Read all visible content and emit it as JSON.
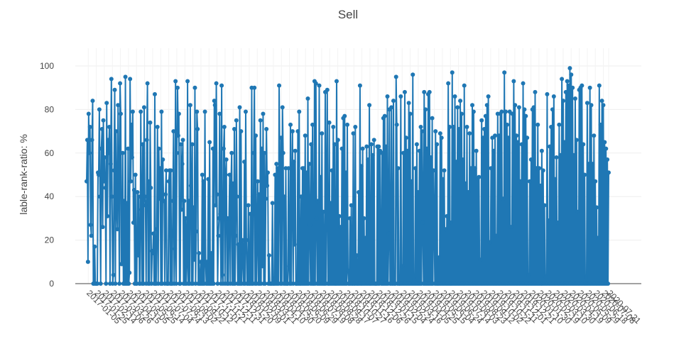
{
  "chart_data": {
    "type": "line",
    "title": "Sell",
    "xlabel": "",
    "ylabel": "lable-rank-ratio: %",
    "ylim": [
      -5,
      105
    ],
    "yticks": [
      0,
      20,
      40,
      60,
      80,
      100
    ],
    "grid": true,
    "legend": "none",
    "x_start": "2017-01-01",
    "x_end": "2020-07-21",
    "line_color": "#1f77b4",
    "x_tick_labels": [
      "2017-01-05",
      "2017-01-25",
      "2017-02-14",
      "2017-03-06",
      "2017-03-26",
      "2017-04-15",
      "2017-05-05",
      "2017-05-25",
      "2017-06-14",
      "2017-07-04",
      "2017-07-24",
      "2017-08-13",
      "2017-09-02",
      "2017-09-22",
      "2017-10-12",
      "2017-11-01",
      "2017-11-21",
      "2017-12-11",
      "2017-12-31",
      "2018-01-20",
      "2018-02-09",
      "2018-03-01",
      "2018-03-21",
      "2018-04-10",
      "2018-04-30",
      "2018-05-20",
      "2018-06-09",
      "2018-06-29",
      "2018-07-19",
      "2018-08-08",
      "2018-08-28",
      "2018-09-17",
      "2018-10-07",
      "2018-10-27",
      "2018-11-16",
      "2018-12-06",
      "2018-12-26",
      "2019-01-15",
      "2019-02-04",
      "2019-02-24",
      "2019-03-16",
      "2019-04-05",
      "2019-04-25",
      "2019-05-15",
      "2019-06-04",
      "2019-06-24",
      "2019-07-14",
      "2019-08-03",
      "2019-08-23",
      "2019-09-12",
      "2019-10-02",
      "2019-10-22",
      "2019-11-11",
      "2019-12-01",
      "2019-12-21",
      "2020-01-10",
      "2020-01-30",
      "2020-02-19",
      "2020-03-10",
      "2020-03-30",
      "2020-04-19",
      "2020-05-09",
      "2020-05-29",
      "2020-06-18",
      "2020-07-08",
      "2020-07-21"
    ],
    "series": [
      {
        "name": "",
        "values": [
          47,
          66,
          10,
          78,
          60,
          72,
          27,
          22,
          66,
          84,
          0,
          0,
          17,
          0,
          0,
          0,
          0,
          51,
          50,
          80,
          40,
          0,
          62,
          71,
          26,
          75,
          47,
          58,
          44,
          0,
          83,
          31,
          66,
          60,
          72,
          0,
          55,
          94,
          40,
          0,
          4,
          52,
          89,
          0,
          70,
          35,
          25,
          82,
          47,
          0,
          92,
          78,
          9,
          9,
          60,
          0,
          38,
          0,
          95,
          0,
          37,
          0,
          62,
          0,
          5,
          94,
          47,
          73,
          58,
          79,
          28,
          43,
          0,
          50,
          0,
          0,
          42,
          13,
          40,
          0,
          0,
          79,
          34,
          0,
          64,
          0,
          81,
          40,
          36,
          0,
          66,
          92,
          0,
          47,
          0,
          74,
          44,
          0,
          15,
          14,
          23,
          0,
          87,
          0,
          0,
          25,
          72,
          0,
          62,
          39,
          53,
          0,
          79,
          0,
          57,
          38,
          38,
          0,
          41,
          52,
          0,
          0,
          0,
          47,
          52,
          0,
          52,
          0,
          0,
          38,
          70,
          0,
          16,
          93,
          0,
          60,
          90,
          68,
          78,
          0,
          0,
          64,
          34,
          55,
          66,
          0,
          38,
          0,
          30,
          0,
          9,
          93,
          0,
          38,
          0,
          82,
          45,
          0,
          64,
          0,
          35,
          11,
          90,
          0,
          24,
          79,
          71,
          0,
          14,
          0,
          0,
          10,
          0,
          50,
          0,
          47,
          0,
          79,
          10,
          0,
          10,
          0,
          48,
          0,
          65,
          0,
          0,
          14,
          0,
          62,
          0,
          84,
          82,
          36,
          92,
          41,
          0,
          22,
          30,
          78,
          32,
          0,
          91,
          4,
          0,
          62,
          72,
          0,
          50,
          57,
          0,
          30,
          0,
          30,
          50,
          0,
          45,
          60,
          0,
          46,
          0,
          71,
          0,
          22,
          75,
          40,
          0,
          18,
          0,
          81,
          0,
          70,
          0,
          20,
          13,
          0,
          56,
          0,
          79,
          20,
          0,
          0,
          36,
          0,
          0,
          32,
          0,
          90,
          0,
          0,
          60,
          90,
          0,
          68,
          0,
          22,
          47,
          0,
          41,
          0,
          75,
          0,
          62,
          8,
          78,
          0,
          60,
          0,
          39,
          71,
          45,
          51,
          0,
          13,
          0,
          0,
          0,
          0,
          37,
          0,
          0,
          0,
          50,
          0,
          55,
          0,
          53,
          0,
          91,
          51,
          0,
          67,
          0,
          81,
          60,
          0,
          40,
          0,
          53,
          0,
          0,
          0,
          53,
          8,
          0,
          73,
          0,
          47,
          70,
          0,
          56,
          18,
          61,
          0,
          0,
          0,
          70,
          0,
          79,
          0,
          0,
          40,
          0,
          53,
          0,
          53,
          0,
          68,
          0,
          51,
          0,
          85,
          0,
          55,
          27,
          0,
          64,
          0,
          73,
          0,
          0,
          93,
          0,
          92,
          30,
          0,
          38,
          0,
          91,
          0,
          49,
          0,
          69,
          0,
          33,
          0,
          0,
          88,
          0,
          40,
          89,
          0,
          0,
          74,
          0,
          37,
          0,
          52,
          0,
          72,
          0,
          64,
          0,
          0,
          93,
          0,
          66,
          0,
          31,
          0,
          26,
          0,
          62,
          0,
          76,
          0,
          77,
          0,
          51,
          0,
          73,
          6,
          0,
          0,
          30,
          0,
          36,
          0,
          0,
          69,
          0,
          0,
          72,
          0,
          13,
          0,
          0,
          42,
          0,
          91,
          0,
          54,
          0,
          62,
          0,
          30,
          0,
          21,
          0,
          63,
          0,
          57,
          0,
          82,
          0,
          0,
          64,
          0,
          59,
          0,
          66,
          0,
          0,
          0,
          0,
          63,
          0,
          63,
          0,
          61,
          1,
          0,
          60,
          0,
          76,
          0,
          77,
          0,
          63,
          0,
          86,
          0,
          23,
          80,
          0,
          0,
          81,
          0,
          0,
          84,
          0,
          0,
          0,
          95,
          73,
          0,
          53,
          0,
          0,
          0,
          86,
          0,
          8,
          0,
          60,
          0,
          88,
          0,
          67,
          0,
          61,
          0,
          83,
          0,
          78,
          0,
          47,
          0,
          96,
          0,
          2,
          0,
          53,
          0,
          64,
          0,
          42,
          0,
          61,
          0,
          72,
          0,
          70,
          28,
          0,
          88,
          0,
          80,
          0,
          62,
          0,
          87,
          0,
          88,
          0,
          58,
          0,
          76,
          0,
          52,
          27,
          0,
          70,
          0,
          64,
          0,
          0,
          12,
          0,
          69,
          0,
          67,
          0,
          48,
          0,
          52,
          0,
          25,
          0,
          31,
          0,
          92,
          0,
          72,
          0,
          28,
          0,
          97,
          0,
          72,
          0,
          86,
          0,
          56,
          0,
          81,
          0,
          71,
          0,
          84,
          0,
          78,
          0,
          57,
          0,
          91,
          0,
          46,
          0,
          72,
          0,
          42,
          0,
          69,
          0,
          53,
          0,
          82,
          0,
          79,
          0,
          53,
          0,
          61,
          0,
          48,
          0,
          49,
          0,
          11,
          0,
          75,
          0,
          67,
          0,
          71,
          0,
          77,
          0,
          82,
          0,
          86,
          0,
          19,
          0,
          53,
          0,
          67,
          0,
          61,
          0,
          68,
          0,
          22,
          0,
          78,
          0,
          68,
          0,
          78,
          0,
          79,
          0,
          39,
          0,
          97,
          0,
          79,
          0,
          73,
          0,
          67,
          0,
          79,
          0,
          26,
          0,
          78,
          0,
          93,
          0,
          82,
          0,
          68,
          0,
          65,
          0,
          81,
          0,
          47,
          0,
          64,
          0,
          92,
          0,
          80,
          0,
          77,
          0,
          67,
          0,
          4,
          0,
          47,
          0,
          57,
          0,
          80,
          0,
          81,
          0,
          88,
          0,
          53,
          0,
          73,
          0,
          53,
          0,
          45,
          0,
          61,
          0,
          52,
          0,
          36,
          0,
          3,
          0,
          87,
          0,
          29,
          0,
          63,
          0,
          72,
          0,
          80,
          0,
          86,
          0,
          48,
          0,
          58,
          0,
          28,
          0,
          73,
          0,
          59,
          0,
          94,
          0,
          84,
          0,
          65,
          0,
          88,
          0,
          93,
          0,
          91,
          0,
          99,
          0,
          96,
          0,
          90,
          0,
          59,
          0,
          85,
          0,
          66,
          0,
          33,
          0,
          89,
          0,
          90,
          0,
          91,
          0,
          64,
          0,
          50,
          0,
          3,
          0,
          83,
          0,
          55,
          0,
          90,
          0,
          82,
          0,
          55,
          0,
          68,
          0,
          47,
          0,
          35,
          0,
          21,
          0,
          91,
          0,
          73,
          0,
          84,
          0,
          82,
          0,
          65,
          0,
          62,
          0,
          57,
          0,
          51
        ]
      }
    ]
  }
}
